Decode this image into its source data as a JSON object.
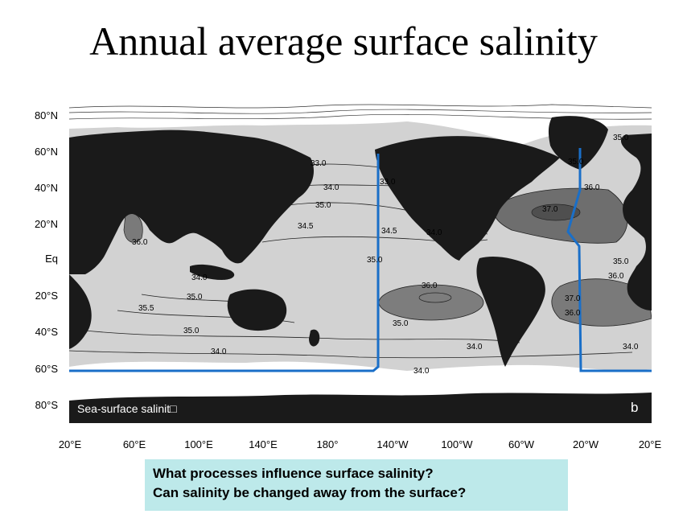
{
  "title": "Annual average surface salinity",
  "map": {
    "panel_label": "Sea-surface salinit□",
    "panel_letter": "b",
    "y_axis_labels": [
      "80°N",
      "60°N",
      "40°N",
      "20°N",
      "Eq",
      "20°S",
      "40°S",
      "60°S",
      "80°S"
    ],
    "x_axis_labels": [
      "20°E",
      "60°E",
      "100°E",
      "140°E",
      "180°",
      "140°W",
      "100°W",
      "60°W",
      "20°W",
      "20°E"
    ],
    "contour_labels": [
      "33.0",
      "34.0",
      "35.0",
      "34.5",
      "36.0",
      "34.0",
      "35.0",
      "35.5",
      "35.0",
      "34.0",
      "33.0",
      "34.5",
      "34.0",
      "35.0",
      "36.0",
      "35.0",
      "34.0",
      "34.0",
      "35.0",
      "36.0",
      "37.0",
      "35.0",
      "36.0",
      "37.0",
      "36.0",
      "34.0",
      "35.0"
    ],
    "colors": {
      "land": "#1a1a1a",
      "ocean_light": "#d2d2d2",
      "ocean_mid": "#8c8c8c",
      "ocean_dark": "#5a5a5a",
      "section_line": "#1a6fc8"
    }
  },
  "questions": [
    "What processes influence surface salinity?",
    "Can salinity be changed away from the surface?"
  ]
}
